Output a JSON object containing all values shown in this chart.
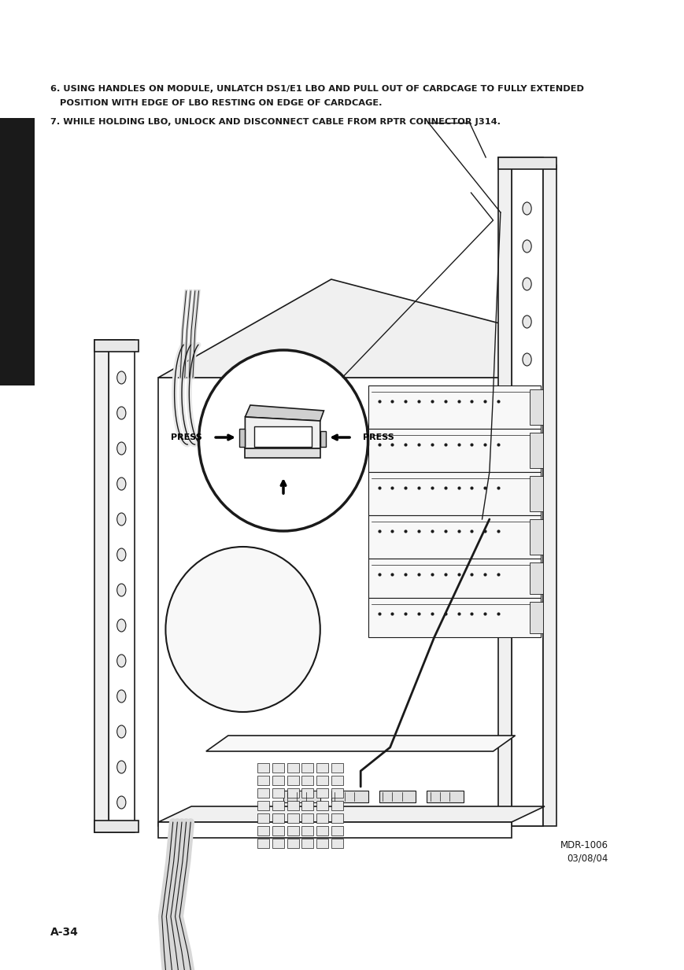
{
  "bg_color": "#ffffff",
  "text_color": "#1a1a1a",
  "line6_text": "6. USING HANDLES ON MODULE, UNLATCH DS1/E1 LBO AND PULL OUT OF CARDCAGE TO FULLY EXTENDED",
  "line6b_text": "   POSITION WITH EDGE OF LBO RESTING ON EDGE OF CARDCAGE.",
  "line7_text": "7. WHILE HOLDING LBO, UNLOCK AND DISCONNECT CABLE FROM RPTR CONNECTOR J314.",
  "press_left": "PRESS",
  "press_right": "PRESS",
  "footer_left": "A-34",
  "footer_right1": "MDR-1006",
  "footer_right2": "03/08/04",
  "fig_width": 8.7,
  "fig_height": 12.33,
  "lc": "#1a1a1a",
  "lw": 1.2
}
